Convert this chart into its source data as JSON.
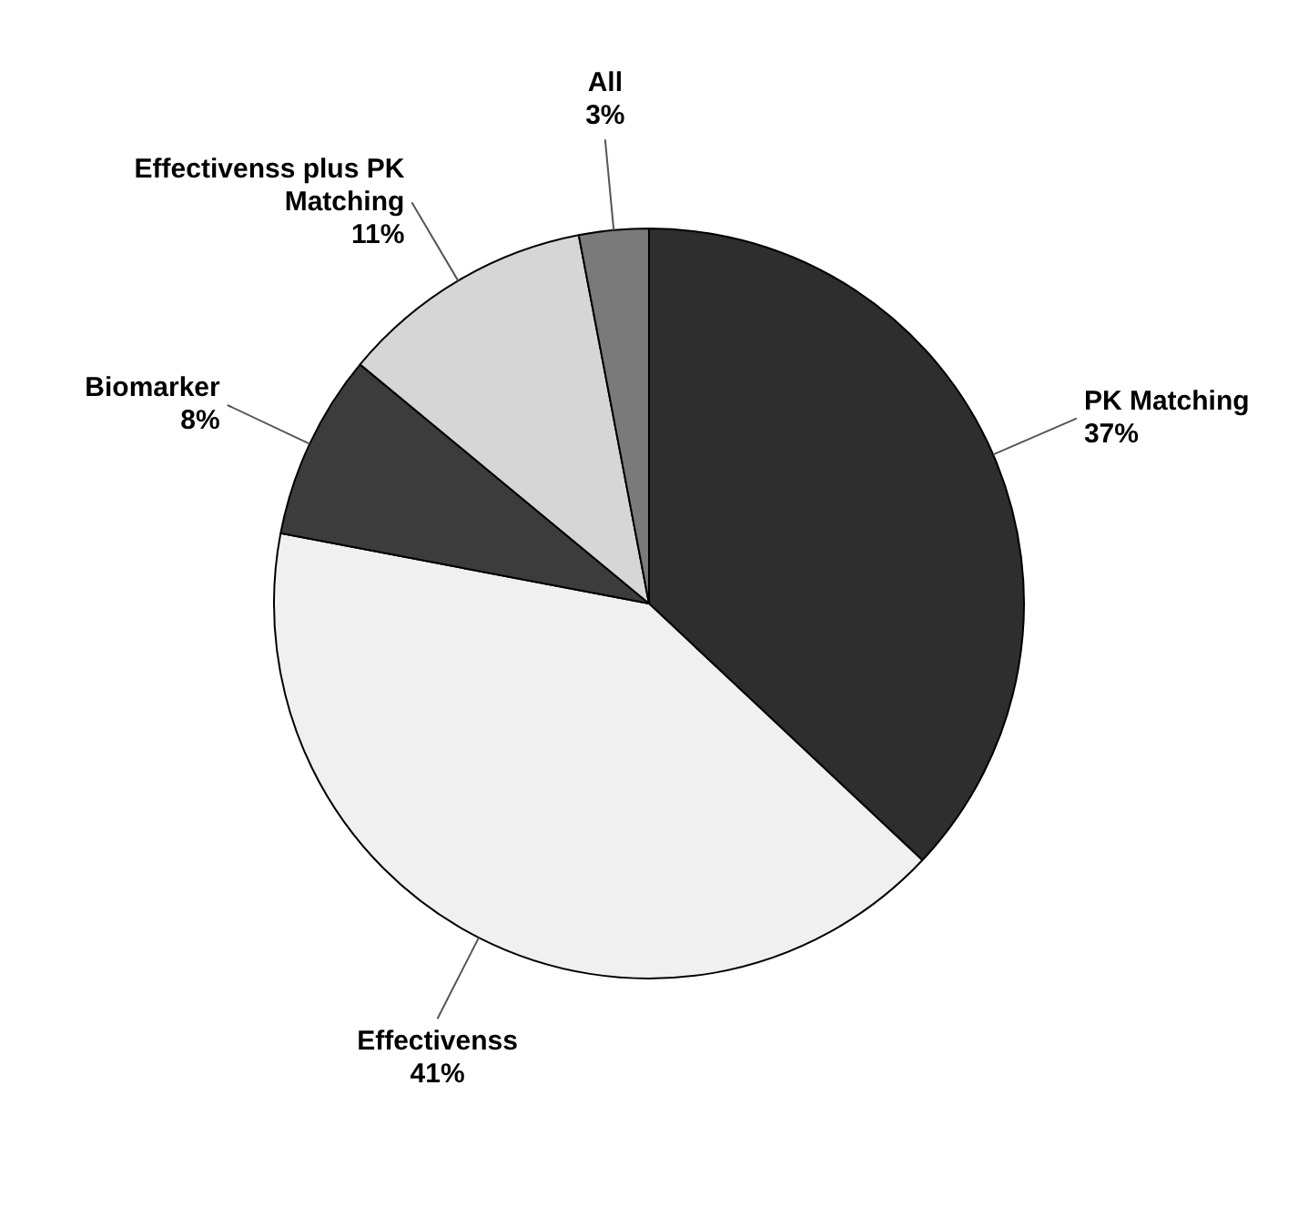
{
  "chart_data": {
    "type": "pie",
    "categories": [
      "PK Matching",
      "Effectivenss",
      "Biomarker",
      "Effectivenss plus PK Matching",
      "All"
    ],
    "values": [
      37,
      41,
      8,
      11,
      3
    ],
    "colors": [
      "#2e2e2e",
      "#f0f0f0",
      "#3c3c3c",
      "#d6d6d6",
      "#7a7a7a"
    ],
    "value_labels": [
      "37%",
      "41%",
      "8%",
      "11%",
      "3%"
    ]
  }
}
